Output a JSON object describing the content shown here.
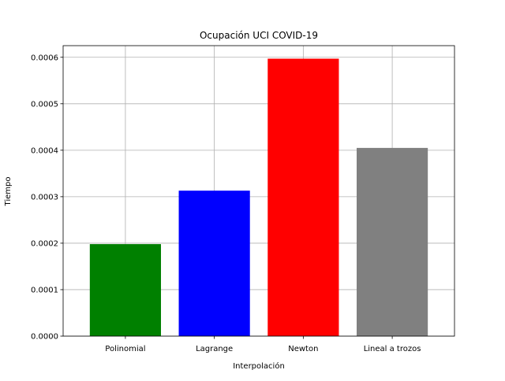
{
  "chart_data": {
    "type": "bar",
    "title": "Ocupación UCI COVID-19",
    "xlabel": "Interpolación",
    "ylabel": "Tiempo",
    "categories": [
      "Polinomial",
      "Lagrange",
      "Newton",
      "Lineal a trozos"
    ],
    "values": [
      0.000198,
      0.000313,
      0.000597,
      0.000405
    ],
    "colors": [
      "#008000",
      "#0000ff",
      "#ff0000",
      "#808080"
    ],
    "ylim": [
      0,
      0.000625
    ],
    "yticks": [
      0,
      0.0001,
      0.0002,
      0.0003,
      0.0004,
      0.0005,
      0.0006
    ],
    "ytick_labels": [
      "0.0000",
      "0.0001",
      "0.0002",
      "0.0003",
      "0.0004",
      "0.0005",
      "0.0006"
    ],
    "grid": true,
    "legend": "none"
  }
}
